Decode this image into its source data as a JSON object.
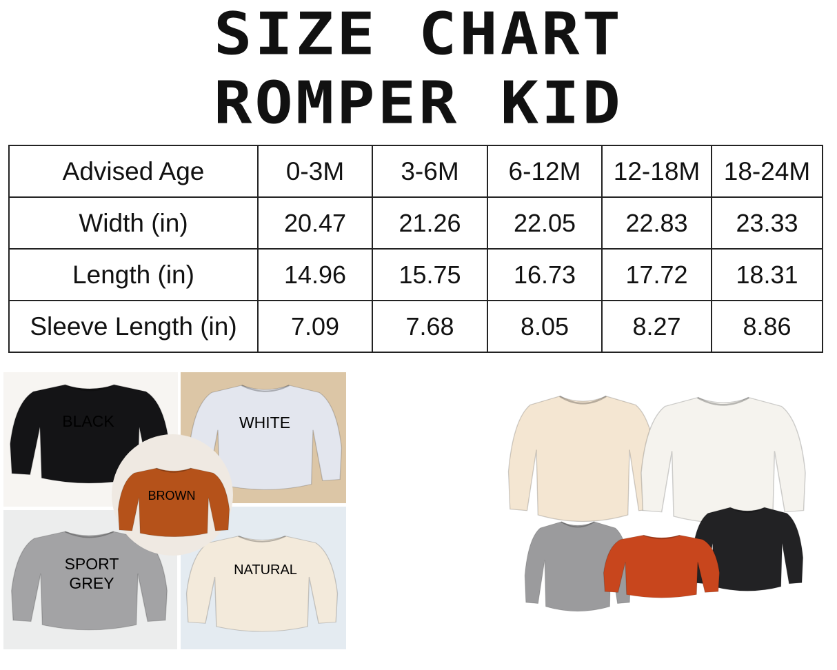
{
  "title_line1": "SIZE CHART",
  "title_line2": "ROMPER KID",
  "size_table": {
    "header": [
      "Advised Age",
      "0-3M",
      "3-6M",
      "6-12M",
      "12-18M",
      "18-24M"
    ],
    "rows": [
      [
        "Width (in)",
        "20.47",
        "21.26",
        "22.05",
        "22.83",
        "23.33"
      ],
      [
        "Length (in)",
        "14.96",
        "15.75",
        "16.73",
        "17.72",
        "18.31"
      ],
      [
        "Sleeve Length (in)",
        "7.09",
        "7.68",
        "8.05",
        "8.27",
        "8.86"
      ]
    ]
  },
  "color_collage": {
    "swatches": [
      {
        "label": "BLACK",
        "color": "#141416",
        "text_color": "#ffffff"
      },
      {
        "label": "WHITE",
        "color": "#e3e6ee",
        "text_color": "#111111"
      },
      {
        "label": "BROWN",
        "color": "#b5521a",
        "text_color": "#ffffff"
      },
      {
        "label": "SPORT",
        "label2": "GREY",
        "color": "#a3a3a5",
        "text_color": "#111111"
      },
      {
        "label": "NATURAL",
        "color": "#f3eadb",
        "text_color": "#111111"
      }
    ]
  },
  "product_group_colors": [
    "#f4e6d2",
    "#f5f3ee",
    "#9b9b9d",
    "#c8461d",
    "#222224"
  ]
}
